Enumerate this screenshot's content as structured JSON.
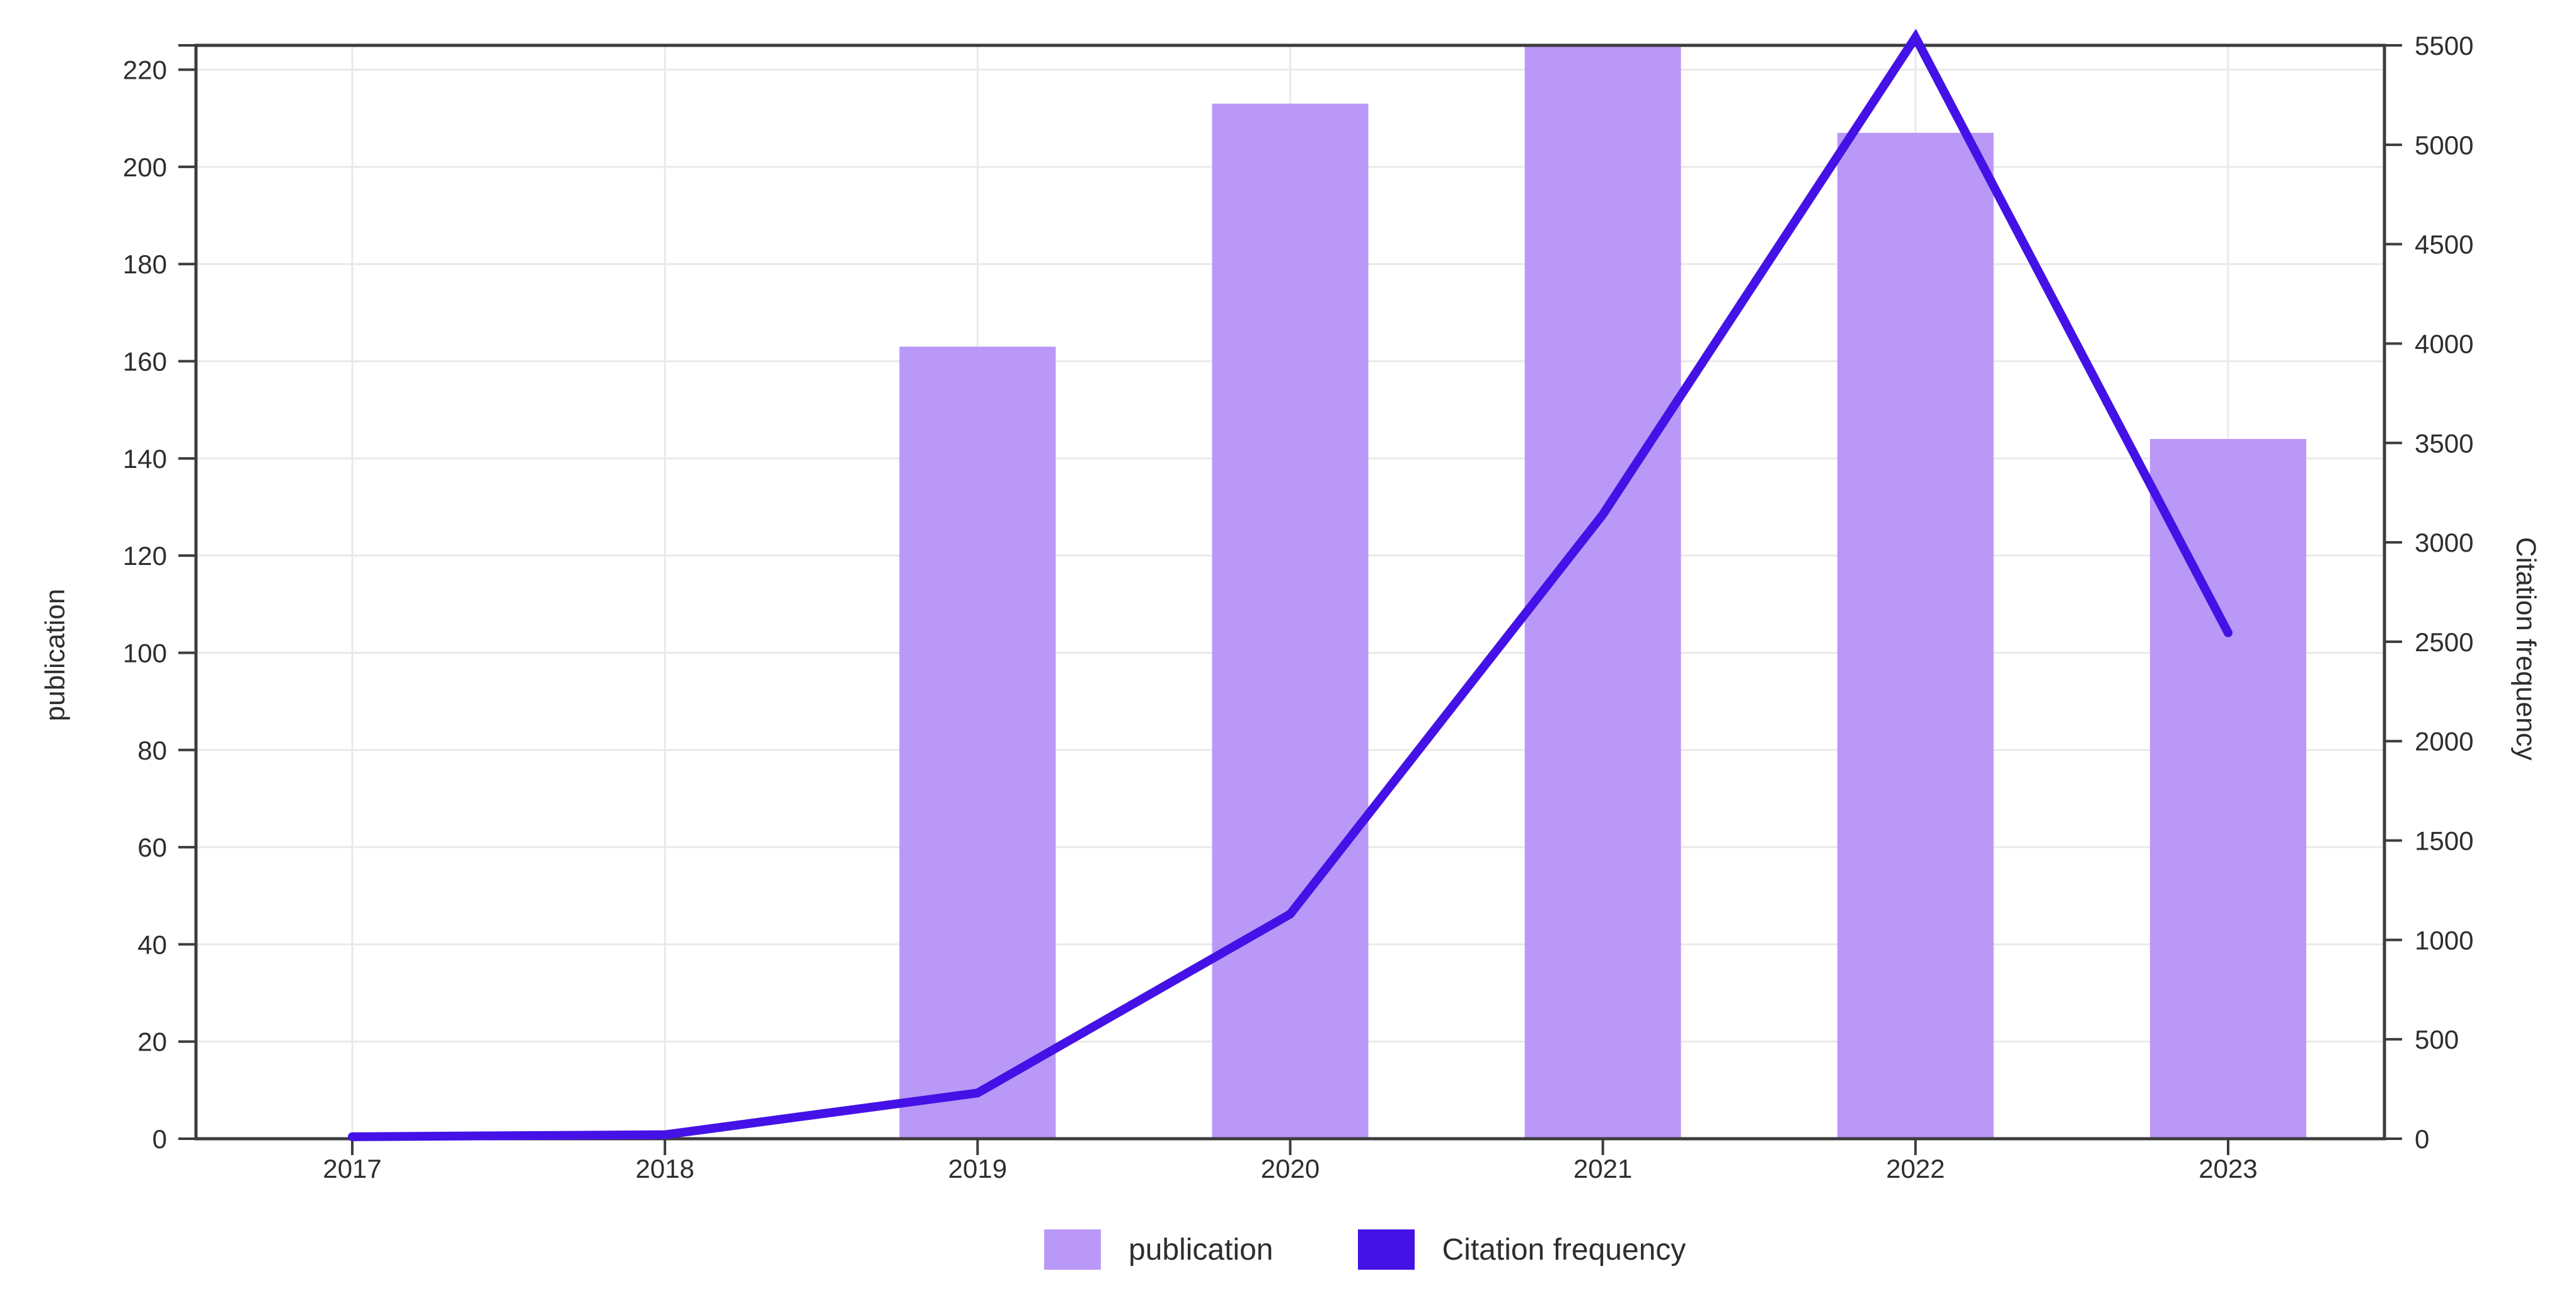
{
  "chart_data": {
    "type": "bar",
    "title": "",
    "categories": [
      "2017",
      "2018",
      "2019",
      "2020",
      "2021",
      "2022",
      "2023"
    ],
    "series": [
      {
        "name": "publication",
        "type": "bar",
        "axis": "left",
        "color": "#BA98F8",
        "values": [
          0,
          0,
          163,
          213,
          225,
          207,
          144
        ]
      },
      {
        "name": "Citation frequency",
        "type": "line",
        "axis": "right",
        "color": "#4412E6",
        "values": [
          10,
          20,
          230,
          1130,
          3140,
          5540,
          2545
        ]
      }
    ],
    "left_axis": {
      "label": "publication",
      "min": 0,
      "max": 225,
      "ticks": [
        0,
        20,
        40,
        60,
        80,
        100,
        120,
        140,
        160,
        180,
        200,
        220
      ]
    },
    "right_axis": {
      "label": "Citation frequency",
      "min": 0,
      "max": 5500,
      "ticks": [
        0,
        500,
        1000,
        1500,
        2000,
        2500,
        3000,
        3500,
        4000,
        4500,
        5000,
        5500
      ]
    },
    "x_axis": {
      "ticks": [
        "2017",
        "2018",
        "2019",
        "2020",
        "2021",
        "2022",
        "2023"
      ]
    },
    "grid": true,
    "legend_position": "bottom",
    "colors": {
      "axis": "#3c3c3c",
      "grid": "#e9e9e9",
      "text": "#2e2e2e",
      "background": "#ffffff"
    }
  }
}
